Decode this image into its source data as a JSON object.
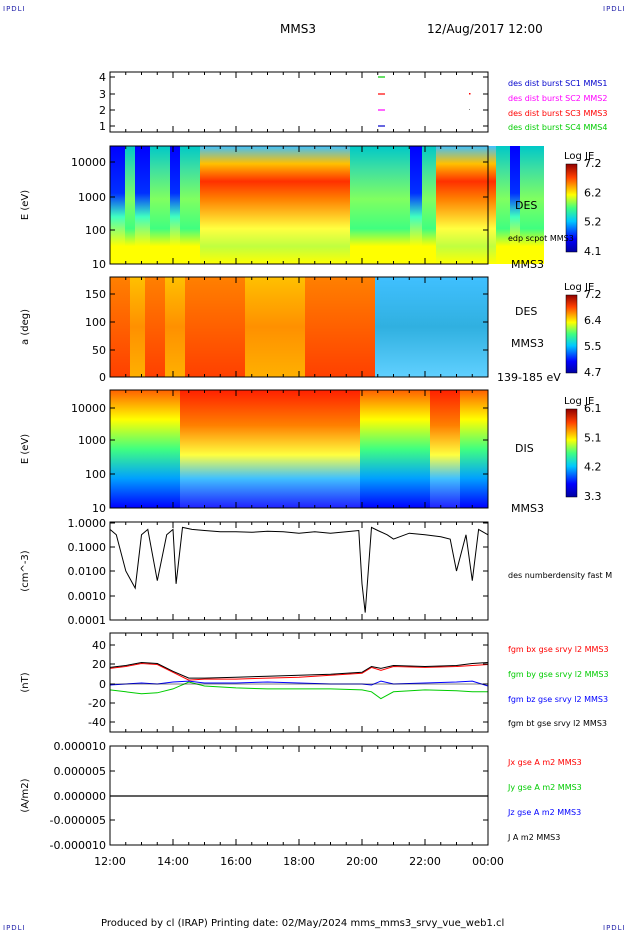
{
  "corner_marks": {
    "top_left": "IPDLI",
    "top_right": "IPDLI",
    "bottom_left": "IPDLI",
    "bottom_right": "IPDLI"
  },
  "header": {
    "spacecraft": "MMS3",
    "date": "12/Aug/2017 12:00"
  },
  "footer": {
    "text": "Produced by cl (IRAP)   Printing date: 02/May/2024   mms_mms3_srvy_vue_web1.cl"
  },
  "colors": {
    "c1": "#0000ff",
    "c2": "#ff00ff",
    "c3": "#ff0000",
    "c4": "#00cc00",
    "black": "#000000"
  },
  "x_ticks": [
    "12:00",
    "14:00",
    "16:00",
    "18:00",
    "20:00",
    "22:00",
    "00:00"
  ],
  "chart_data": [
    {
      "id": "burst",
      "type": "scatter",
      "y_ticks": [
        "4",
        "3",
        "2",
        "1"
      ],
      "legend": [
        "des dist burst SC1 MMS1",
        "des dist burst SC2 MMS2",
        "des dist burst SC3 MMS3",
        "des dist burst SC4 MMS4"
      ],
      "legend_colors": [
        "#0000cc",
        "#ff00ff",
        "#ff0000",
        "#00cc00"
      ]
    },
    {
      "id": "des_energy",
      "type": "heatmap",
      "ylabel": "E (eV)",
      "y_ticks": [
        "10000",
        "1000",
        "100",
        "10"
      ],
      "right_labels": [
        "DES",
        "edp scpot MMS3",
        "MMS3"
      ],
      "colorbar": {
        "title": "Log JE",
        "ticks": [
          "7.2",
          "6.2",
          "5.2",
          "4.1"
        ]
      }
    },
    {
      "id": "des_pitch",
      "type": "heatmap",
      "ylabel": "a (deg)",
      "y_ticks": [
        "150",
        "100",
        "50",
        "0"
      ],
      "right_labels": [
        "DES",
        "MMS3",
        "139-185 eV"
      ],
      "colorbar": {
        "title": "Log JE",
        "ticks": [
          "7.2",
          "6.4",
          "5.5",
          "4.7"
        ]
      }
    },
    {
      "id": "dis_energy",
      "type": "heatmap",
      "ylabel": "E (eV)",
      "y_ticks": [
        "10000",
        "1000",
        "100",
        "10"
      ],
      "right_labels": [
        "DIS",
        "MMS3"
      ],
      "colorbar": {
        "title": "Log JE",
        "ticks": [
          "6.1",
          "5.1",
          "4.2",
          "3.3"
        ]
      }
    },
    {
      "id": "density",
      "type": "line",
      "ylabel": "(cm^-3)",
      "y_ticks": [
        "1.0000",
        "0.1000",
        "0.0100",
        "0.0010",
        "0.0001"
      ],
      "legend": [
        "des numberdensity fast M"
      ],
      "x": [
        12.0,
        12.2,
        12.5,
        12.8,
        13.0,
        13.2,
        13.5,
        13.8,
        14.0,
        14.1,
        14.3,
        14.6,
        15.0,
        15.5,
        16.0,
        16.5,
        17.0,
        17.5,
        18.0,
        18.5,
        19.0,
        19.5,
        19.9,
        20.0,
        20.1,
        20.3,
        20.5,
        20.8,
        21.0,
        21.5,
        22.0,
        22.5,
        22.8,
        23.0,
        23.3,
        23.5,
        23.7,
        24.0
      ],
      "values": [
        0.5,
        0.3,
        0.01,
        0.002,
        0.3,
        0.5,
        0.004,
        0.3,
        0.5,
        0.003,
        0.6,
        0.5,
        0.45,
        0.4,
        0.4,
        0.38,
        0.42,
        0.4,
        0.35,
        0.4,
        0.35,
        0.4,
        0.45,
        0.003,
        0.0002,
        0.6,
        0.45,
        0.3,
        0.2,
        0.35,
        0.3,
        0.25,
        0.2,
        0.01,
        0.3,
        0.004,
        0.5,
        0.3
      ]
    },
    {
      "id": "fgm",
      "type": "line",
      "ylabel": "(nT)",
      "y_ticks": [
        "40",
        "20",
        "0",
        "-20",
        "-40"
      ],
      "ylim": [
        -50,
        50
      ],
      "legend": [
        "fgm bx gse srvy l2 MMS3",
        "fgm by gse srvy l2 MMS3",
        "fgm bz gse srvy l2 MMS3",
        "fgm bt gse srvy l2 MMS3"
      ],
      "legend_colors": [
        "#ff0000",
        "#00cc00",
        "#0000ff",
        "#000000"
      ],
      "x": [
        12,
        12.5,
        13,
        13.5,
        14,
        14.5,
        15,
        16,
        17,
        18,
        19,
        20,
        20.3,
        20.6,
        21,
        22,
        23,
        23.5,
        24
      ],
      "series": [
        {
          "color": "#ff0000",
          "values": [
            16,
            18,
            21,
            20,
            12,
            4,
            5,
            5,
            6,
            7,
            9,
            11,
            17,
            14,
            18,
            17,
            18,
            19,
            20
          ]
        },
        {
          "color": "#00cc00",
          "values": [
            -6,
            -8,
            -10,
            -9,
            -5,
            2,
            -2,
            -4,
            -5,
            -5,
            -5,
            -6,
            -8,
            -15,
            -8,
            -6,
            -7,
            -8,
            -8
          ]
        },
        {
          "color": "#0000ff",
          "values": [
            -1,
            0,
            1,
            0,
            2,
            3,
            1,
            1,
            2,
            1,
            0,
            0,
            -1,
            3,
            0,
            1,
            2,
            3,
            -2
          ]
        },
        {
          "color": "#000000",
          "values": [
            17,
            19,
            22,
            21,
            13,
            6,
            6,
            7,
            8,
            9,
            10,
            12,
            18,
            16,
            19,
            18,
            19,
            21,
            22
          ]
        }
      ]
    },
    {
      "id": "current",
      "type": "line",
      "ylabel": "(A/m2)",
      "y_ticks": [
        "0.000010",
        "0.000005",
        "0.000000",
        "-0.000005",
        "-0.000010"
      ],
      "ylim": [
        -1e-05,
        1e-05
      ],
      "legend": [
        "Jx gse A m2 MMS3",
        "Jy gse A m2 MMS3",
        "Jz gse A m2 MMS3",
        "J A m2 MMS3"
      ],
      "legend_colors": [
        "#ff0000",
        "#00cc00",
        "#0000ff",
        "#000000"
      ],
      "x": [
        12,
        24
      ],
      "values": [
        0,
        0
      ]
    }
  ]
}
